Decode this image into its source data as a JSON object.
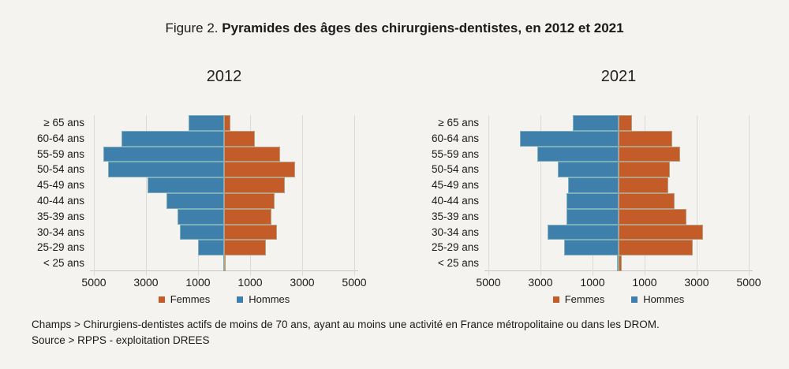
{
  "title": {
    "prefix": "Figure 2. ",
    "main": "Pyramides des âges des chirurgiens-dentistes, en 2012 et 2021"
  },
  "colors": {
    "femmes": "#c35c28",
    "hommes": "#3e80ab",
    "background": "#f4f3ef",
    "grid": "#dcdad6",
    "text": "#1a1a1a"
  },
  "legend": {
    "femmes": "Femmes",
    "hommes": "Hommes"
  },
  "footer": {
    "line1": "Champs > Chirurgiens-dentistes actifs de moins de 70 ans, ayant au moins une activité en France métropolitaine ou dans les DROM.",
    "line2": "Source > RPPS - exploitation DREES"
  },
  "chart_data": [
    {
      "type": "bar",
      "subtype": "population-pyramid",
      "title": "2012",
      "categories": [
        "≥ 65 ans",
        "60-64 ans",
        "55-59 ans",
        "50-54 ans",
        "45-49 ans",
        "40-44 ans",
        "35-39 ans",
        "30-34 ans",
        "25-29 ans",
        "< 25 ans"
      ],
      "series": [
        {
          "name": "Hommes",
          "side": "left",
          "color": "#3e80ab",
          "values": [
            1350,
            3950,
            4650,
            4450,
            2950,
            2200,
            1800,
            1700,
            1000,
            20
          ]
        },
        {
          "name": "Femmes",
          "side": "right",
          "color": "#c35c28",
          "values": [
            230,
            1190,
            2150,
            2720,
            2320,
            1940,
            1810,
            2040,
            1600,
            60
          ]
        }
      ],
      "xlim": [
        -5500,
        5500
      ],
      "x_ticks": [
        -5000,
        -3000,
        -1000,
        1000,
        3000,
        5000
      ],
      "x_tick_labels": [
        "5000",
        "3000",
        "1000",
        "1000",
        "3000",
        "5000"
      ],
      "grid": true,
      "legend_position": "bottom"
    },
    {
      "type": "bar",
      "subtype": "population-pyramid",
      "title": "2021",
      "categories": [
        "≥ 65 ans",
        "60-64 ans",
        "55-59 ans",
        "50-54 ans",
        "45-49 ans",
        "40-44 ans",
        "35-39 ans",
        "30-34 ans",
        "25-29 ans",
        "< 25 ans"
      ],
      "series": [
        {
          "name": "Hommes",
          "side": "left",
          "color": "#3e80ab",
          "values": [
            1770,
            3790,
            3120,
            2320,
            1940,
            1990,
            1990,
            2720,
            2090,
            70
          ]
        },
        {
          "name": "Femmes",
          "side": "right",
          "color": "#c35c28",
          "values": [
            510,
            2050,
            2370,
            1970,
            1900,
            2150,
            2600,
            3240,
            2860,
            110
          ]
        }
      ],
      "xlim": [
        -5500,
        5500
      ],
      "x_ticks": [
        -5000,
        -3000,
        -1000,
        1000,
        3000,
        5000
      ],
      "x_tick_labels": [
        "5000",
        "3000",
        "1000",
        "1000",
        "3000",
        "5000"
      ],
      "grid": true,
      "legend_position": "bottom"
    }
  ]
}
